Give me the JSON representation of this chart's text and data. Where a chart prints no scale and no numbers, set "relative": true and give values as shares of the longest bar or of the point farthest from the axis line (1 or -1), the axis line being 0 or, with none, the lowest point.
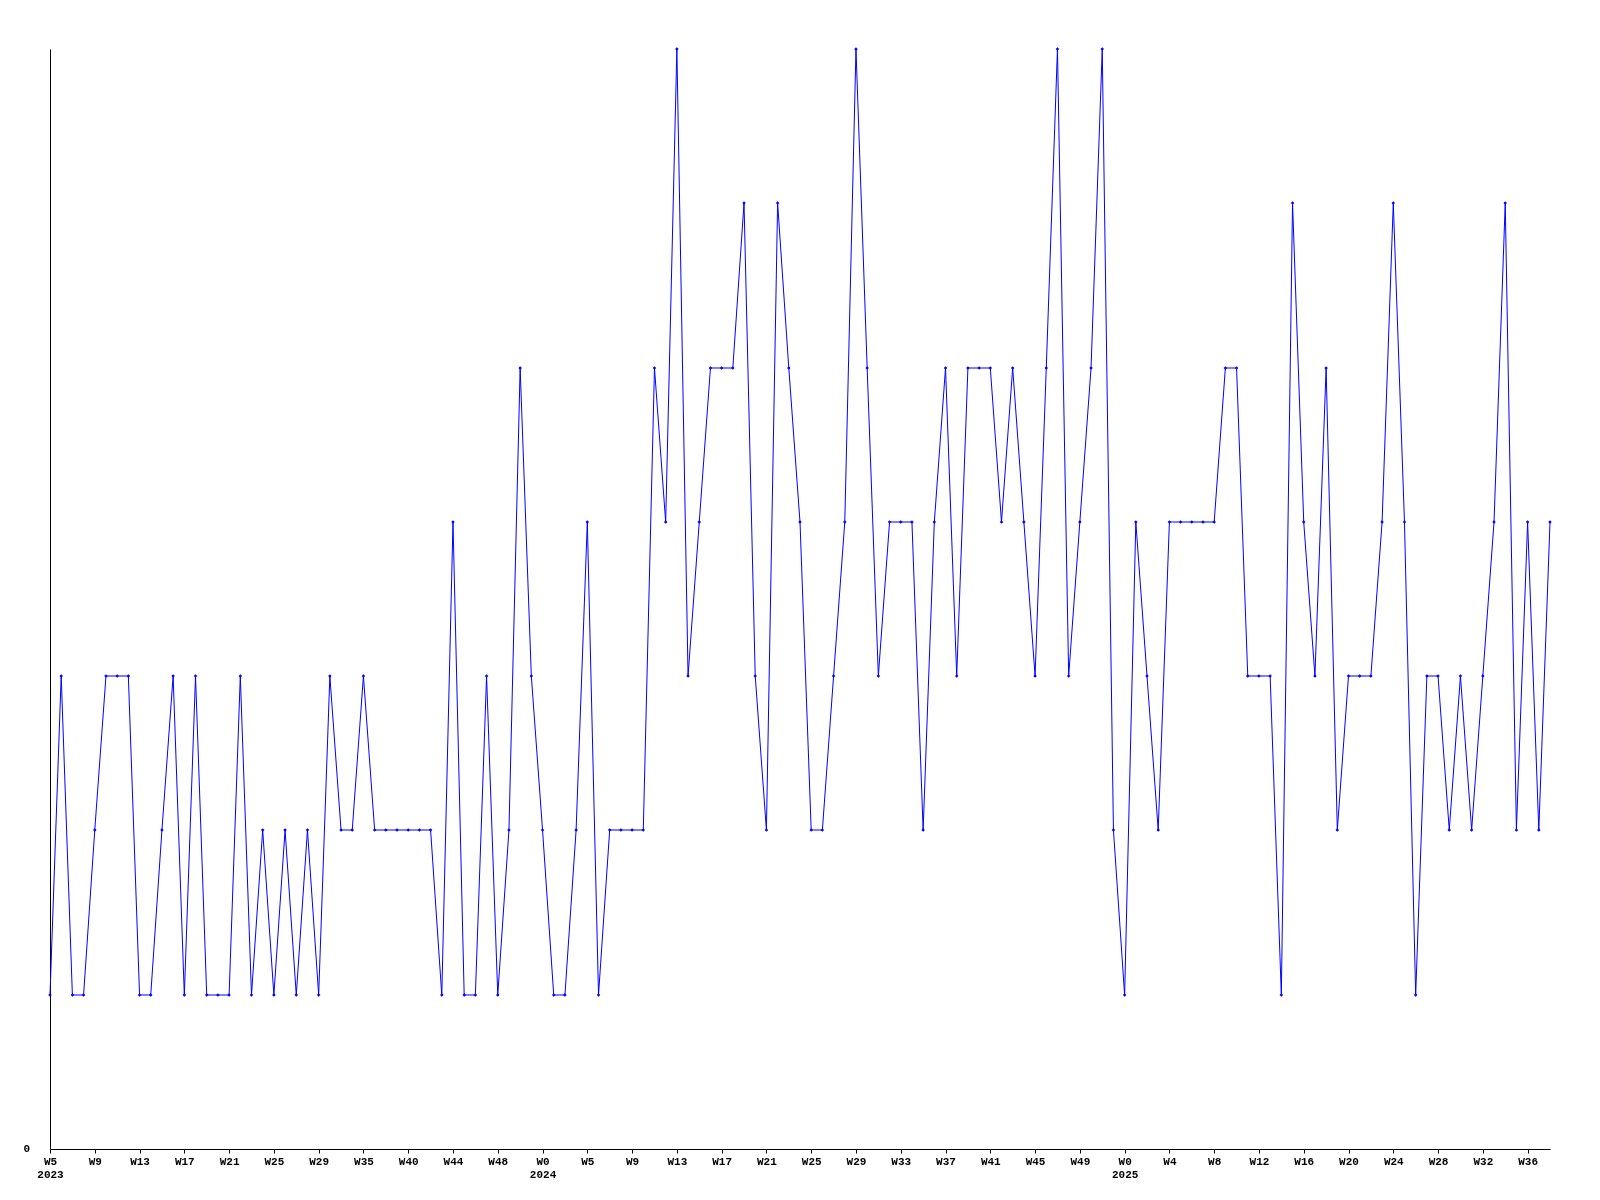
{
  "chart_data": {
    "type": "line",
    "relative": true,
    "marker": "diamond",
    "line_style": "solid",
    "grid": false,
    "legend": false,
    "annotations": [
      "0"
    ],
    "categories": [
      "W5\n2023",
      null,
      null,
      null,
      "W9",
      null,
      null,
      null,
      "W13",
      null,
      null,
      null,
      "W17",
      null,
      null,
      null,
      "W21",
      null,
      null,
      null,
      "W25",
      null,
      null,
      null,
      "W29",
      null,
      null,
      null,
      "W35",
      null,
      null,
      null,
      "W40",
      null,
      null,
      null,
      "W44",
      null,
      null,
      null,
      "W48",
      null,
      null,
      null,
      "W0\n2024",
      null,
      null,
      null,
      "W5",
      null,
      null,
      null,
      "W9",
      null,
      null,
      null,
      "W13",
      null,
      null,
      null,
      "W17",
      null,
      null,
      null,
      "W21",
      null,
      null,
      null,
      "W25",
      null,
      null,
      null,
      "W29",
      null,
      null,
      null,
      "W33",
      null,
      null,
      null,
      "W37",
      null,
      null,
      null,
      "W41",
      null,
      null,
      null,
      "W45",
      null,
      null,
      null,
      "W49",
      null,
      null,
      null,
      "W0\n2025",
      null,
      null,
      null,
      "W4",
      null,
      null,
      null,
      "W8",
      null,
      null,
      null,
      "W12",
      null,
      null,
      null,
      "W16",
      null,
      null,
      null,
      "W20",
      null,
      null,
      null,
      "W24",
      null,
      null,
      null,
      "W28",
      null,
      null,
      null,
      "W32",
      null,
      null,
      null,
      "W36",
      null,
      null
    ],
    "series": [
      {
        "color": "#0000ff",
        "values": [
          0.14,
          0.43,
          0.14,
          0.14,
          0.29,
          0.43,
          0.43,
          0.43,
          0.14,
          0.14,
          0.29,
          0.43,
          0.14,
          0.43,
          0.14,
          0.14,
          0.14,
          0.43,
          0.14,
          0.29,
          0.14,
          0.29,
          0.14,
          0.29,
          0.14,
          0.43,
          0.29,
          0.29,
          0.43,
          0.29,
          0.29,
          0.29,
          0.29,
          0.29,
          0.29,
          0.14,
          0.57,
          0.14,
          0.14,
          0.43,
          0.14,
          0.29,
          0.71,
          0.43,
          0.29,
          0.14,
          0.14,
          0.29,
          0.57,
          0.14,
          0.29,
          0.29,
          0.29,
          0.29,
          0.71,
          0.57,
          1,
          0.43,
          0.57,
          0.71,
          0.71,
          0.71,
          0.86,
          0.43,
          0.29,
          0.86,
          0.71,
          0.57,
          0.29,
          0.29,
          0.43,
          0.57,
          1,
          0.71,
          0.43,
          0.57,
          0.57,
          0.57,
          0.29,
          0.57,
          0.71,
          0.43,
          0.71,
          0.71,
          0.71,
          0.57,
          0.71,
          0.57,
          0.43,
          0.71,
          1,
          0.43,
          0.57,
          0.71,
          1,
          0.29,
          0.14,
          0.57,
          0.43,
          0.29,
          0.57,
          0.57,
          0.57,
          0.57,
          0.57,
          0.71,
          0.71,
          0.43,
          0.43,
          0.43,
          0.14,
          0.86,
          0.57,
          0.43,
          0.71,
          0.29,
          0.43,
          0.43,
          0.43,
          0.57,
          0.86,
          0.57,
          0.14,
          0.43,
          0.43,
          0.29,
          0.43,
          0.29,
          0.43,
          0.57,
          0.86,
          0.29,
          0.57,
          0.29,
          0.57
        ]
      }
    ]
  }
}
